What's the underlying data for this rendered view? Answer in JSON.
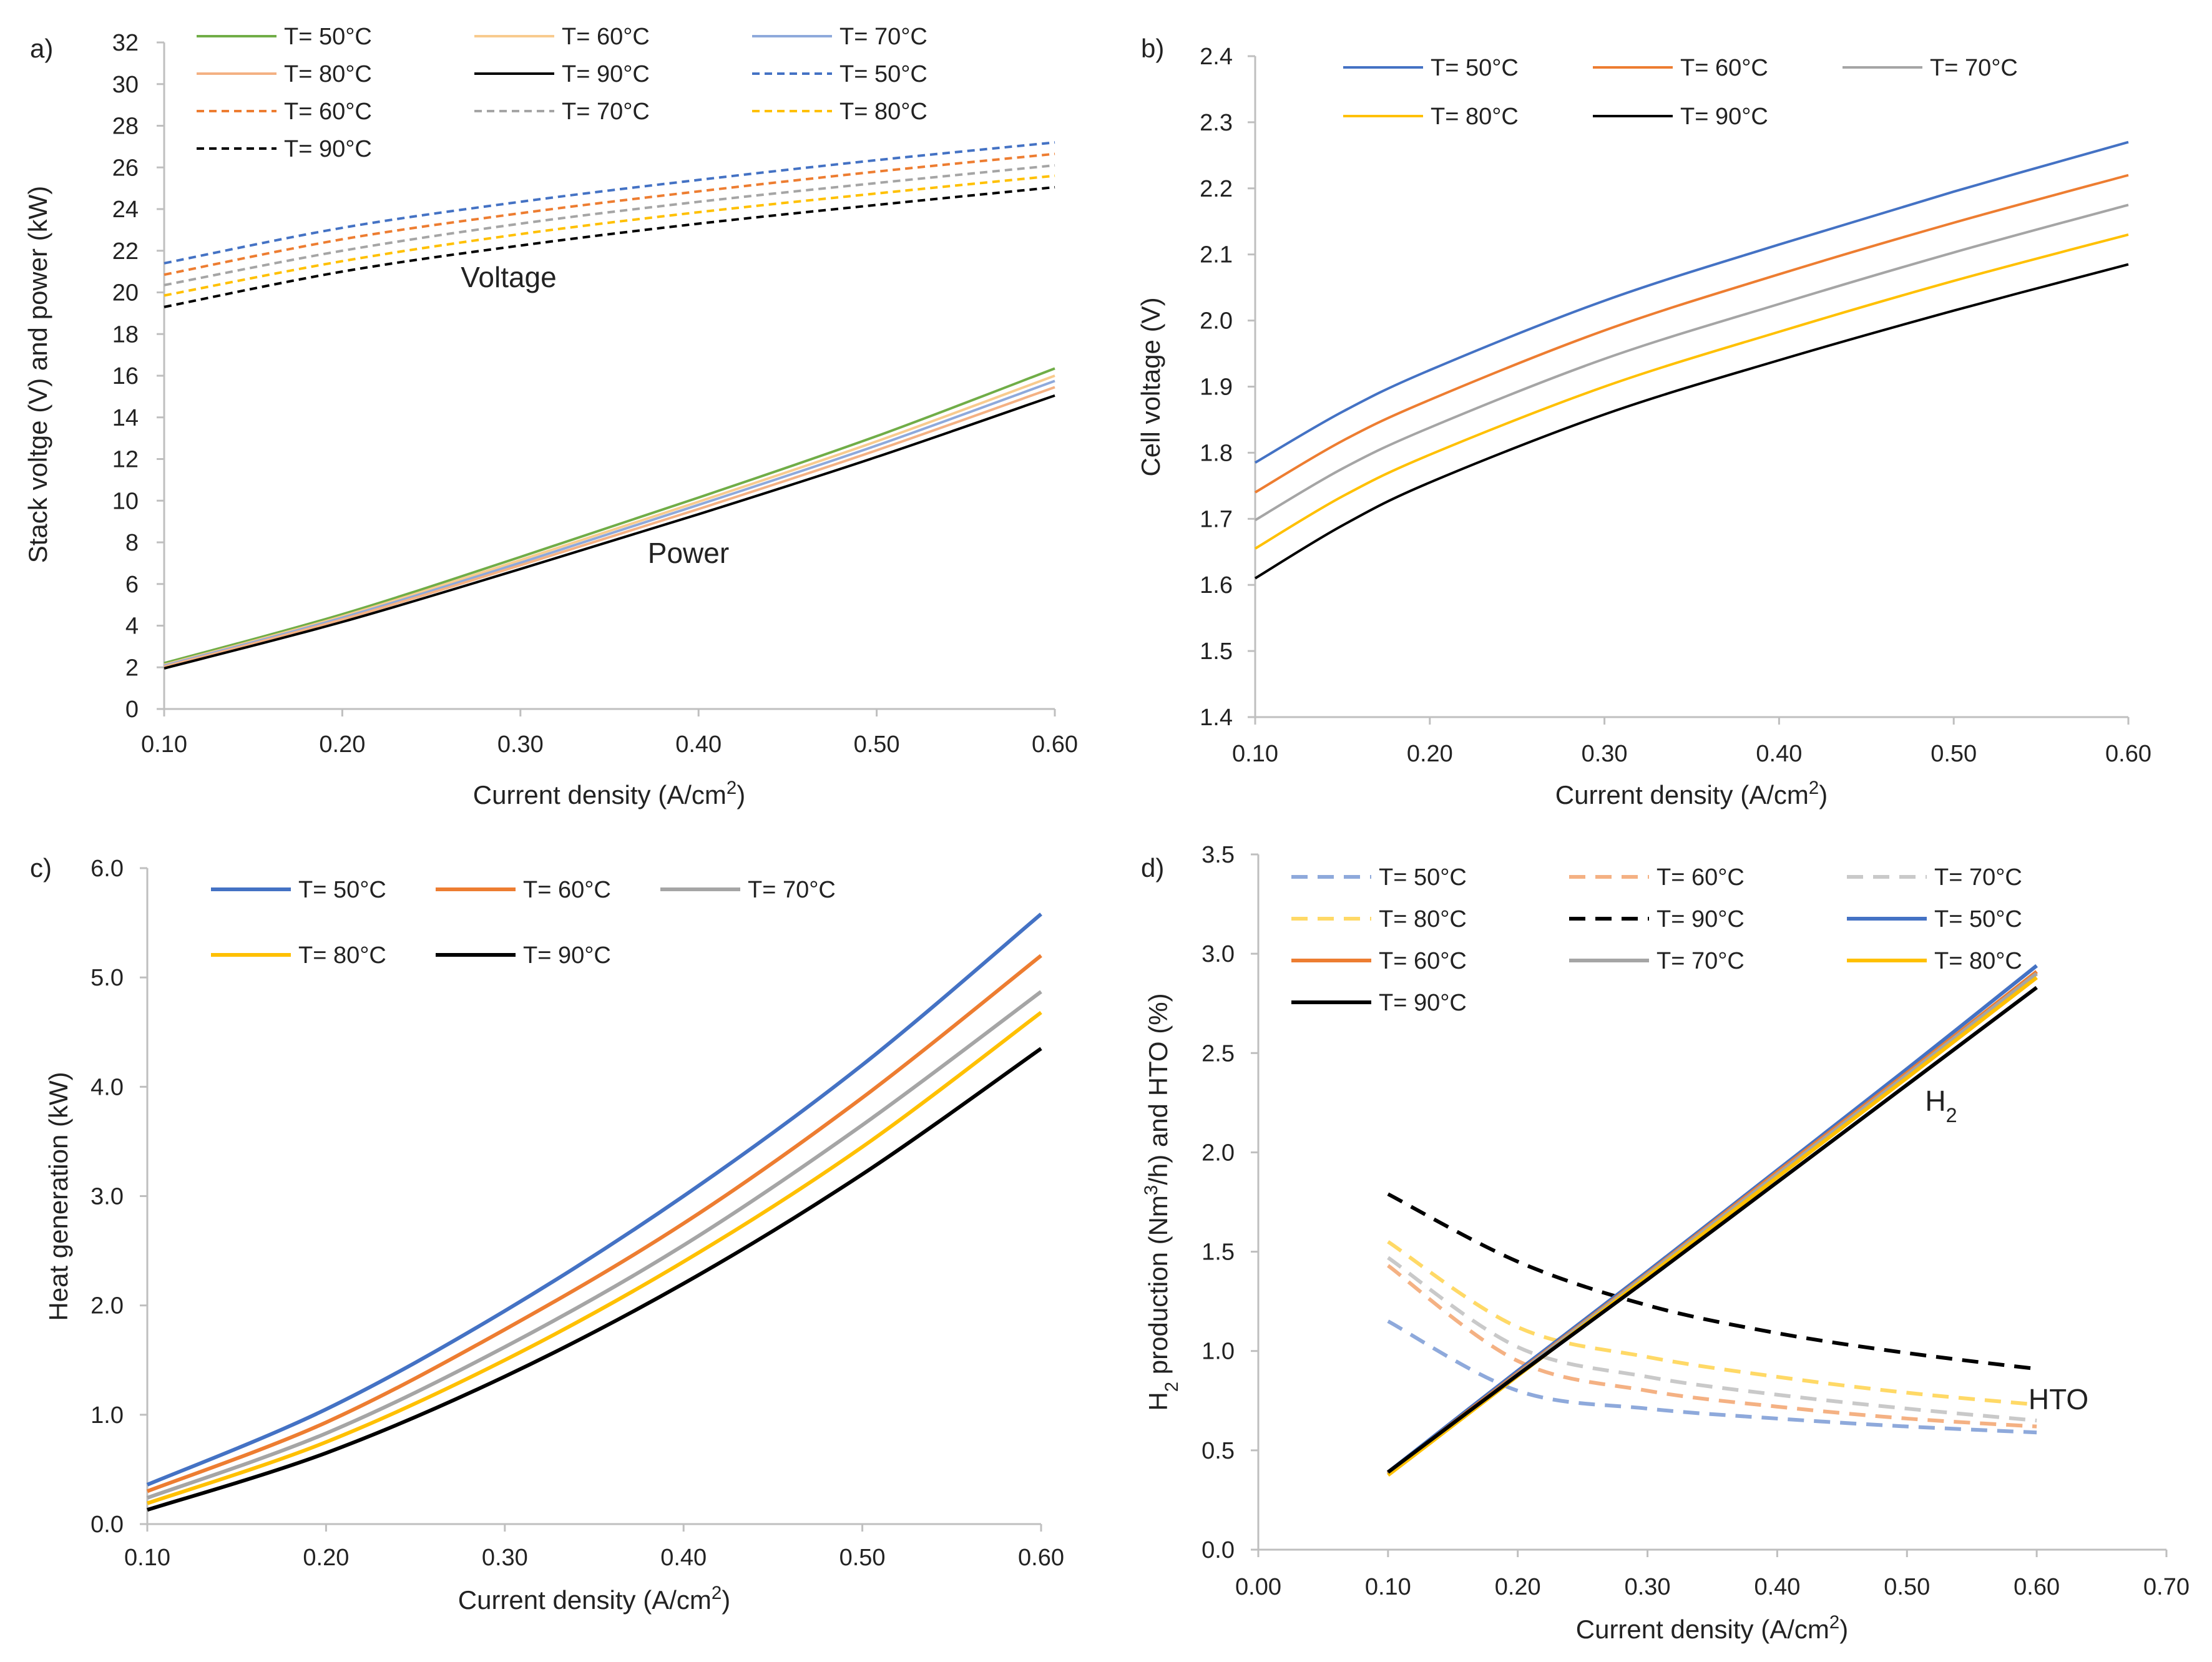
{
  "colors": {
    "T50": "#4472c4",
    "T60": "#ed7d31",
    "T70": "#a5a5a5",
    "T80": "#ffc000",
    "T90": "#000000",
    "T50a": "#70ad47",
    "T60a": "#f8cb8e",
    "T70a": "#8ea9db",
    "T80a": "#f4b183"
  },
  "chart_data": [
    {
      "panel": "a)",
      "type": "line",
      "xlabel": "Current density (A/cm2)",
      "ylabel": "Stack voltge (V) and power (kW)",
      "xlim": [
        0.1,
        0.6
      ],
      "ylim": [
        0,
        32
      ],
      "xticks": [
        "0.10",
        "0.20",
        "0.30",
        "0.40",
        "0.50",
        "0.60"
      ],
      "yticks": [
        "0",
        "2",
        "4",
        "6",
        "8",
        "10",
        "12",
        "14",
        "16",
        "18",
        "20",
        "22",
        "24",
        "26",
        "28",
        "30",
        "32"
      ],
      "annotations": [
        "Voltage",
        "Power"
      ],
      "x": [
        0.1,
        0.2,
        0.3,
        0.4,
        0.5,
        0.6
      ],
      "series": [
        {
          "name": "T= 50°C",
          "color": "#70ad47",
          "dash": false,
          "values": [
            2.2,
            4.55,
            7.3,
            10.15,
            13.1,
            16.35
          ]
        },
        {
          "name": "T=  60°C",
          "color": "#f8cb8e",
          "dash": false,
          "values": [
            2.12,
            4.45,
            7.15,
            9.95,
            12.85,
            16.0
          ]
        },
        {
          "name": "T= 70°C",
          "color": "#8ea9db",
          "dash": false,
          "values": [
            2.08,
            4.38,
            7.02,
            9.8,
            12.65,
            15.75
          ]
        },
        {
          "name": "T= 80°C",
          "color": "#f4b183",
          "dash": false,
          "values": [
            2.03,
            4.3,
            6.9,
            9.6,
            12.42,
            15.45
          ]
        },
        {
          "name": "T= 90°C",
          "color": "#000000",
          "dash": false,
          "values": [
            1.95,
            4.18,
            6.72,
            9.35,
            12.1,
            15.05
          ]
        },
        {
          "name": "T= 50°C",
          "color": "#4472c4",
          "dash": true,
          "values": [
            21.4,
            23.1,
            24.35,
            25.4,
            26.35,
            27.2
          ]
        },
        {
          "name": "T=  60°C",
          "color": "#ed7d31",
          "dash": true,
          "values": [
            20.85,
            22.55,
            23.8,
            24.85,
            25.8,
            26.65
          ]
        },
        {
          "name": "T= 70°C",
          "color": "#a5a5a5",
          "dash": true,
          "values": [
            20.35,
            22.0,
            23.3,
            24.35,
            25.25,
            26.1
          ]
        },
        {
          "name": "T= 80°C",
          "color": "#ffc000",
          "dash": true,
          "values": [
            19.85,
            21.5,
            22.8,
            23.85,
            24.75,
            25.6
          ]
        },
        {
          "name": "T= 90°C",
          "color": "#000000",
          "dash": true,
          "values": [
            19.3,
            21.0,
            22.25,
            23.3,
            24.2,
            25.05
          ]
        }
      ]
    },
    {
      "panel": "b)",
      "type": "line",
      "xlabel": "Current density (A/cm2)",
      "ylabel": "Cell voltage (V)",
      "xlim": [
        0.1,
        0.6
      ],
      "ylim": [
        1.4,
        2.4
      ],
      "xticks": [
        "0.10",
        "0.20",
        "0.30",
        "0.40",
        "0.50",
        "0.60"
      ],
      "yticks": [
        "1.4",
        "1.5",
        "1.6",
        "1.7",
        "1.8",
        "1.9",
        "2.0",
        "2.1",
        "2.2",
        "2.3",
        "2.4"
      ],
      "x": [
        0.1,
        0.15,
        0.2,
        0.3,
        0.4,
        0.5,
        0.6
      ],
      "series": [
        {
          "name": "T= 50°C",
          "color": "#4472c4",
          "dash": false,
          "values": [
            1.785,
            1.862,
            1.925,
            2.03,
            2.115,
            2.195,
            2.27
          ]
        },
        {
          "name": "T=  60°C",
          "color": "#ed7d31",
          "dash": false,
          "values": [
            1.74,
            1.818,
            1.88,
            1.985,
            2.07,
            2.148,
            2.22
          ]
        },
        {
          "name": "T= 70°C",
          "color": "#a5a5a5",
          "dash": false,
          "values": [
            1.698,
            1.776,
            1.838,
            1.942,
            2.025,
            2.103,
            2.175
          ]
        },
        {
          "name": "T= 80°C",
          "color": "#ffc000",
          "dash": false,
          "values": [
            1.655,
            1.734,
            1.797,
            1.9,
            1.983,
            2.06,
            2.13
          ]
        },
        {
          "name": "T= 90°C",
          "color": "#000000",
          "dash": false,
          "values": [
            1.61,
            1.69,
            1.755,
            1.858,
            1.94,
            2.015,
            2.085
          ]
        }
      ]
    },
    {
      "panel": "c)",
      "type": "line",
      "xlabel": "Current density (A/cm2)",
      "ylabel": "Heat generation (kW)",
      "xlim": [
        0.1,
        0.6
      ],
      "ylim": [
        0,
        6
      ],
      "xticks": [
        "0.10",
        "0.20",
        "0.30",
        "0.40",
        "0.50",
        "0.60"
      ],
      "yticks": [
        "0.0",
        "1.0",
        "2.0",
        "3.0",
        "4.0",
        "5.0",
        "6.0"
      ],
      "x": [
        0.1,
        0.2,
        0.3,
        0.4,
        0.5,
        0.6
      ],
      "series": [
        {
          "name": "T= 50°C",
          "color": "#4472c4",
          "dash": false,
          "values": [
            0.36,
            1.05,
            1.95,
            3.0,
            4.2,
            5.58
          ]
        },
        {
          "name": "T=  60°C",
          "color": "#ed7d31",
          "dash": false,
          "values": [
            0.3,
            0.93,
            1.78,
            2.75,
            3.9,
            5.2
          ]
        },
        {
          "name": "T= 70°C",
          "color": "#a5a5a5",
          "dash": false,
          "values": [
            0.24,
            0.83,
            1.62,
            2.55,
            3.65,
            4.87
          ]
        },
        {
          "name": "T= 80°C",
          "color": "#ffc000",
          "dash": false,
          "values": [
            0.19,
            0.75,
            1.5,
            2.4,
            3.45,
            4.68
          ]
        },
        {
          "name": "T= 90°C",
          "color": "#000000",
          "dash": false,
          "values": [
            0.13,
            0.65,
            1.35,
            2.2,
            3.2,
            4.35
          ]
        }
      ]
    },
    {
      "panel": "d)",
      "type": "line",
      "xlabel": "Current density (A/cm2)",
      "ylabel": "H2 production (Nm3/h) and HTO (%)",
      "xlim": [
        0,
        0.7
      ],
      "ylim": [
        0,
        3.5
      ],
      "xticks": [
        "0.00",
        "0.10",
        "0.20",
        "0.30",
        "0.40",
        "0.50",
        "0.60",
        "0.70"
      ],
      "yticks": [
        "0.0",
        "0.5",
        "1.0",
        "1.5",
        "2.0",
        "2.5",
        "3.0",
        "3.5"
      ],
      "annotations": [
        "H2",
        "HTO"
      ],
      "x": [
        0.1,
        0.2,
        0.3,
        0.4,
        0.5,
        0.6
      ],
      "series": [
        {
          "name": "T= 50°C",
          "color": "#8ea9db",
          "dash": true,
          "values": [
            1.15,
            0.8,
            0.71,
            0.66,
            0.62,
            0.59
          ]
        },
        {
          "name": "T=  60°C",
          "color": "#f4b183",
          "dash": true,
          "values": [
            1.43,
            0.95,
            0.8,
            0.72,
            0.66,
            0.62
          ]
        },
        {
          "name": "T= 70°C",
          "color": "#c9c9c9",
          "dash": true,
          "values": [
            1.47,
            1.02,
            0.87,
            0.78,
            0.71,
            0.65
          ]
        },
        {
          "name": "T= 80°C",
          "color": "#ffd966",
          "dash": true,
          "values": [
            1.55,
            1.12,
            0.97,
            0.87,
            0.79,
            0.73
          ]
        },
        {
          "name": "T= 90°C",
          "color": "#000000",
          "dash": true,
          "values": [
            1.79,
            1.45,
            1.23,
            1.09,
            0.99,
            0.91
          ]
        },
        {
          "name": "T= 50°C",
          "color": "#4472c4",
          "dash": false,
          "values": [
            0.39,
            0.9,
            1.4,
            1.91,
            2.42,
            2.94
          ]
        },
        {
          "name": "T=  60°C",
          "color": "#ed7d31",
          "dash": false,
          "values": [
            0.385,
            0.89,
            1.39,
            1.9,
            2.4,
            2.91
          ]
        },
        {
          "name": "T= 70°C",
          "color": "#a5a5a5",
          "dash": false,
          "values": [
            0.38,
            0.885,
            1.385,
            1.89,
            2.39,
            2.9
          ]
        },
        {
          "name": "T= 80°C",
          "color": "#ffc000",
          "dash": false,
          "values": [
            0.375,
            0.875,
            1.375,
            1.875,
            2.375,
            2.88
          ]
        },
        {
          "name": "T= 90°C",
          "color": "#000000",
          "dash": false,
          "values": [
            0.39,
            0.88,
            1.36,
            1.85,
            2.34,
            2.83
          ]
        }
      ]
    }
  ]
}
